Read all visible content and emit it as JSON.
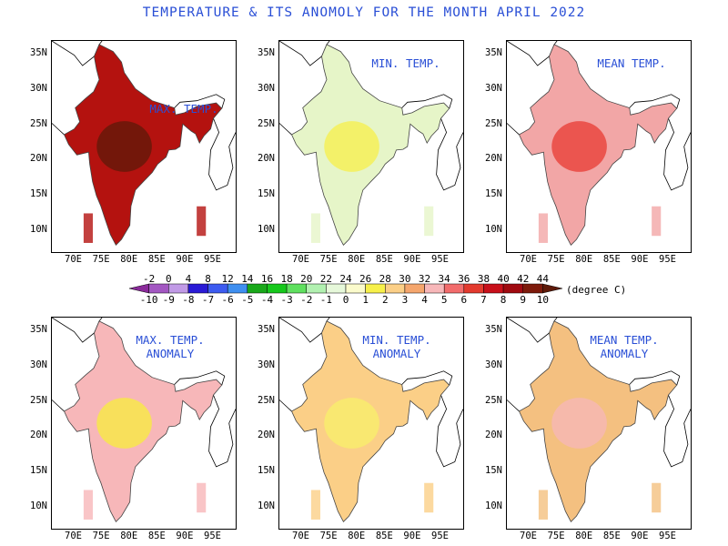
{
  "title": "TEMPERATURE & ITS   ANOMOLY FOR THE MONTH APRIL 2022",
  "panels": [
    {
      "title": [
        "MAX. TEMP."
      ],
      "fill": "#b4120f",
      "accent": "#5e1a09"
    },
    {
      "title": [
        "MIN. TEMP."
      ],
      "fill": "#e6f5c8",
      "accent": "#f7ef4a"
    },
    {
      "title": [
        "MEAN TEMP."
      ],
      "fill": "#f2a6a6",
      "accent": "#e83a32"
    },
    {
      "title": [
        "MAX. TEMP.",
        "ANOMALY"
      ],
      "fill": "#f7b7b9",
      "accent": "#f8ee3c"
    },
    {
      "title": [
        "MIN. TEMP.",
        "ANOMALY"
      ],
      "fill": "#fbcf87",
      "accent": "#f8f06a"
    },
    {
      "title": [
        "MEAN TEMP.",
        "ANOMALY"
      ],
      "fill": "#f4c080",
      "accent": "#f7b7b9"
    }
  ],
  "axes": {
    "y_labels": [
      "35N",
      "30N",
      "25N",
      "20N",
      "15N",
      "10N"
    ],
    "x_labels": [
      "70E",
      "75E",
      "80E",
      "85E",
      "90E",
      "95E"
    ]
  },
  "legend": {
    "top_labels": [
      "-2",
      "0",
      "4",
      "8",
      "12",
      "14",
      "16",
      "18",
      "20",
      "22",
      "24",
      "26",
      "28",
      "30",
      "32",
      "34",
      "36",
      "38",
      "40",
      "42",
      "44"
    ],
    "bottom_labels": [
      "-10",
      "-9",
      "-8",
      "-7",
      "-6",
      "-5",
      "-4",
      "-3",
      "-2",
      "-1",
      "0",
      "1",
      "2",
      "3",
      "4",
      "5",
      "6",
      "7",
      "8",
      "9",
      "10"
    ],
    "unit": "(degree C)",
    "colors": [
      "#8a2a9a",
      "#a357c2",
      "#c19ae6",
      "#2a1ad6",
      "#3d5bf0",
      "#3f8ff0",
      "#19a81a",
      "#16c81c",
      "#5fe05f",
      "#b1f0b0",
      "#e6f8da",
      "#fbfbcc",
      "#f7f04a",
      "#fbcf87",
      "#f5a66d",
      "#f7b7b9",
      "#f26c6c",
      "#e33a2e",
      "#c8101a",
      "#a00a10",
      "#7d1a0b",
      "#5e1a09"
    ]
  }
}
